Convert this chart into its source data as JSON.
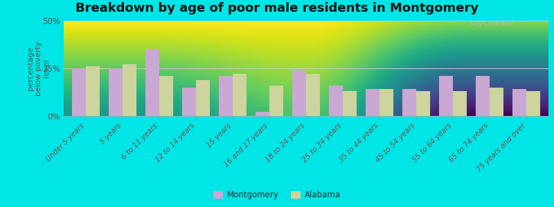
{
  "title": "Breakdown by age of poor male residents in Montgomery",
  "ylabel": "percentage\nbelow poverty\nlevel",
  "categories": [
    "Under 5 years",
    "5 years",
    "6 to 11 years",
    "12 to 14 years",
    "15 years",
    "16 and 17 years",
    "18 to 24 years",
    "25 to 34 years",
    "35 to 44 years",
    "45 to 54 years",
    "55 to 64 years",
    "65 to 74 years",
    "75 years and over"
  ],
  "montgomery": [
    25,
    25,
    35,
    15,
    21,
    2,
    24,
    16,
    14,
    14,
    21,
    21,
    14
  ],
  "alabama": [
    26,
    27,
    21,
    19,
    22,
    16,
    22,
    13,
    14,
    13,
    13,
    15,
    13
  ],
  "bar_color_montgomery": "#c9a8d4",
  "bar_color_alabama": "#cdd49e",
  "bg_outer": "#00e5e5",
  "bg_plot_top": "#f8f8ee",
  "bg_plot_bottom": "#dde8c0",
  "ylim": [
    0,
    50
  ],
  "yticks": [
    0,
    25,
    50
  ],
  "bar_width": 0.38,
  "legend_montgomery": "Montgomery",
  "legend_alabama": "Alabama",
  "watermark": "City-Data.com",
  "title_fontsize": 13,
  "label_fontsize": 7.5,
  "ylabel_fontsize": 8
}
